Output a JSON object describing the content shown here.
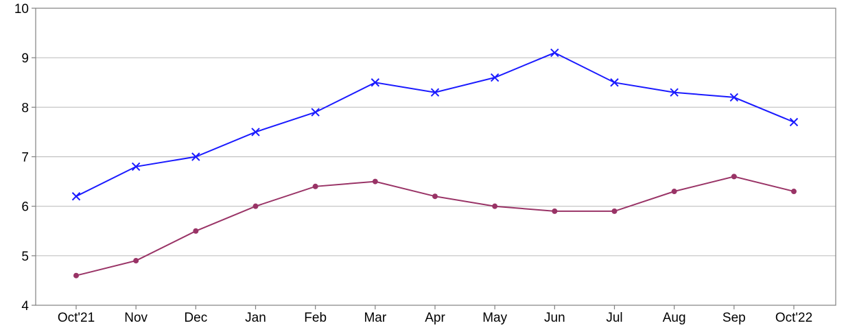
{
  "chart_data": {
    "type": "line",
    "categories": [
      "Oct'21",
      "Nov",
      "Dec",
      "Jan",
      "Feb",
      "Mar",
      "Apr",
      "May",
      "Jun",
      "Jul",
      "Aug",
      "Sep",
      "Oct'22"
    ],
    "series": [
      {
        "values": [
          6.2,
          6.8,
          7.0,
          7.5,
          7.9,
          8.5,
          8.3,
          8.6,
          9.1,
          8.5,
          8.3,
          8.2,
          7.7
        ],
        "color": "#1a1aff",
        "marker": "x"
      },
      {
        "values": [
          4.6,
          4.9,
          5.5,
          6.0,
          6.4,
          6.5,
          6.2,
          6.0,
          5.9,
          5.9,
          6.3,
          6.6,
          6.3
        ],
        "color": "#993366",
        "marker": "circle"
      }
    ],
    "ylim": [
      4,
      10
    ],
    "yticks": [
      "4",
      "5",
      "6",
      "7",
      "8",
      "9",
      "10"
    ],
    "grid": true,
    "legend": "none"
  }
}
